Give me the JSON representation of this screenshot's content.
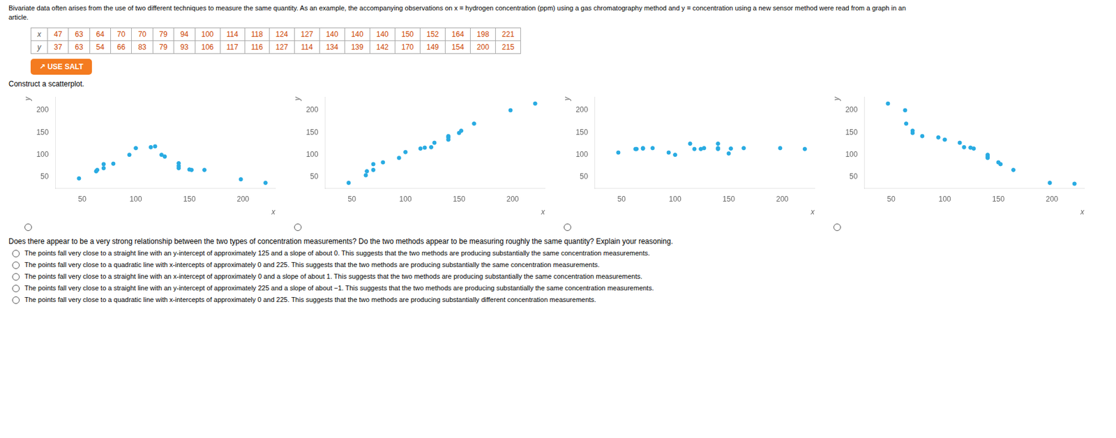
{
  "title": "Bivariate data often arises from the use of two different techniques to measure the same quantity. As an example, the accompanying observations on x = hydrogen concentration (ppm) using a gas chromatography method and y = concentration using a new sensor method were read from a graph in an\narticle.",
  "table": {
    "row_labels": [
      "x",
      "y"
    ],
    "rows": [
      [
        47,
        63,
        64,
        70,
        70,
        79,
        94,
        100,
        114,
        118,
        124,
        127,
        140,
        140,
        140,
        150,
        152,
        164,
        198,
        221
      ],
      [
        37,
        63,
        54,
        66,
        83,
        79,
        93,
        106,
        117,
        116,
        127,
        114,
        134,
        139,
        142,
        170,
        149,
        154,
        200,
        215
      ]
    ]
  },
  "button": "↗ USE SALT",
  "instruction": "Construct a scatterplot.",
  "question": "Does there appear to be a very strong relationship between the two types of concentration measurements? Do the two methods appear to be measuring roughly the same quantity? Explain your reasoning.",
  "options": [
    "The points fall very close to a straight line with an y-intercept of approximately 125 and a slope of about 0. This suggests that the two methods are producing substantially the same concentration measurements.",
    "The points fall very close to a quadratic line with x-intercepts of approximately 0 and 225. This suggests that the two methods are producing substantially the same concentration measurements.",
    "The points fall very close to a straight line with an x-intercept of approximately 0 and a slope of about 1. This suggests that the two methods are producing substantially the same concentration measurements.",
    "The points fall very close to a straight line with an y-intercept of approximately 225 and a slope of about −1. This suggests that the two methods are producing substantially the same concentration measurements.",
    "The points fall very close to a quadratic line with x-intercepts of approximately 0 and 225. This suggests that the two methods are producing substantially different concentration measurements."
  ],
  "chart_data": [
    {
      "type": "scatter",
      "x_label": "x",
      "y_label": "y",
      "color": "#29ABE2",
      "grid": false,
      "xlim": [
        25,
        230
      ],
      "ylim": [
        25,
        230
      ],
      "xticks": [
        50,
        100,
        150,
        200
      ],
      "yticks": [
        50,
        100,
        150,
        200
      ],
      "x": [
        47,
        63,
        64,
        70,
        70,
        79,
        94,
        100,
        114,
        118,
        124,
        127,
        140,
        140,
        140,
        150,
        152,
        164,
        198,
        221
      ],
      "values": [
        47,
        63,
        66,
        70,
        79,
        80,
        100,
        115,
        117,
        119,
        100,
        96,
        81,
        75,
        70,
        67,
        66,
        66,
        45,
        37
      ]
    },
    {
      "type": "scatter",
      "x_label": "x",
      "y_label": "y",
      "color": "#29ABE2",
      "grid": false,
      "xlim": [
        25,
        230
      ],
      "ylim": [
        25,
        230
      ],
      "xticks": [
        50,
        100,
        150,
        200
      ],
      "yticks": [
        50,
        100,
        150,
        200
      ],
      "x": [
        47,
        63,
        64,
        70,
        70,
        79,
        94,
        100,
        114,
        118,
        124,
        127,
        140,
        140,
        140,
        150,
        152,
        164,
        198,
        221
      ],
      "values": [
        37,
        54,
        63,
        66,
        79,
        83,
        93,
        106,
        114,
        116,
        117,
        127,
        134,
        139,
        142,
        149,
        154,
        170,
        200,
        215
      ]
    },
    {
      "type": "scatter",
      "x_label": "x",
      "y_label": "y",
      "color": "#29ABE2",
      "grid": false,
      "xlim": [
        25,
        230
      ],
      "ylim": [
        25,
        230
      ],
      "xticks": [
        50,
        100,
        150,
        200
      ],
      "yticks": [
        50,
        100,
        150,
        200
      ],
      "x": [
        47,
        63,
        64,
        70,
        70,
        79,
        94,
        100,
        114,
        118,
        124,
        127,
        140,
        140,
        140,
        150,
        152,
        164,
        198,
        221
      ],
      "values": [
        105,
        113,
        113,
        114,
        115,
        115,
        105,
        100,
        125,
        113,
        113,
        115,
        125,
        115,
        113,
        103,
        114,
        115,
        115,
        113
      ]
    },
    {
      "type": "scatter",
      "x_label": "x",
      "y_label": "y",
      "color": "#29ABE2",
      "grid": false,
      "xlim": [
        25,
        230
      ],
      "ylim": [
        25,
        230
      ],
      "xticks": [
        50,
        100,
        150,
        200
      ],
      "yticks": [
        50,
        100,
        150,
        200
      ],
      "x": [
        47,
        63,
        64,
        70,
        70,
        79,
        94,
        100,
        114,
        118,
        124,
        127,
        140,
        140,
        140,
        150,
        152,
        164,
        198,
        221
      ],
      "values": [
        215,
        200,
        170,
        154,
        149,
        142,
        139,
        134,
        127,
        117,
        116,
        114,
        100,
        96,
        93,
        83,
        79,
        66,
        37,
        35
      ]
    }
  ]
}
